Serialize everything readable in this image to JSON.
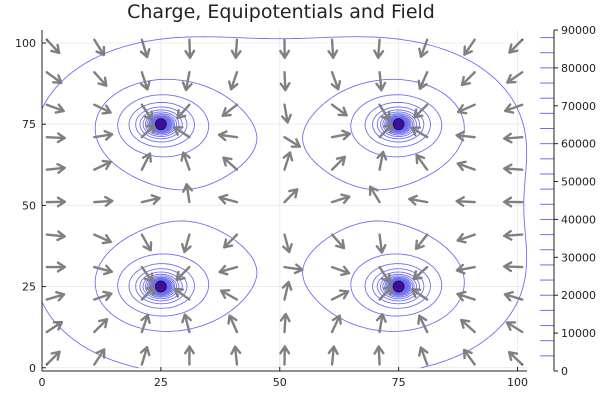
{
  "chart_data": {
    "type": "contour",
    "title": "Charge, Equipotentials and Field",
    "xlabel": "",
    "ylabel": "",
    "xlim": [
      0,
      102
    ],
    "ylim": [
      -1,
      104
    ],
    "x_ticks": [
      0,
      25,
      50,
      75,
      100
    ],
    "y_ticks": [
      0,
      25,
      50,
      75,
      100
    ],
    "grid": true,
    "charges": [
      {
        "x": 25,
        "y": 75
      },
      {
        "x": 75,
        "y": 75
      },
      {
        "x": 25,
        "y": 25
      },
      {
        "x": 75,
        "y": 25
      }
    ],
    "corner_markers": [
      {
        "x": 1,
        "y": 1
      },
      {
        "x": 1,
        "y": 101
      },
      {
        "x": 101,
        "y": 1
      },
      {
        "x": 101,
        "y": 101
      }
    ],
    "colorbar": {
      "min": 0,
      "max": 90000,
      "ticks": [
        0,
        10000,
        20000,
        30000,
        40000,
        50000,
        60000,
        70000,
        80000,
        90000
      ],
      "levels": [
        4000,
        8000,
        12000,
        16000,
        20000,
        24000,
        28000,
        32000,
        36000,
        40000,
        44000,
        48000,
        52000,
        56000,
        60000,
        64000,
        68000,
        72000,
        76000,
        80000,
        84000,
        88000
      ]
    },
    "arrow_grid": {
      "x": [
        1,
        11,
        21,
        31,
        41,
        51,
        61,
        71,
        81,
        91,
        101
      ],
      "y": [
        1,
        11,
        21,
        31,
        41,
        51,
        61,
        71,
        81,
        91,
        101
      ]
    },
    "colors": {
      "contour": "#6f6ff0",
      "arrow": "#808080",
      "charge": "#3d1099",
      "axis": "#222222",
      "grid": "#ececec"
    }
  }
}
